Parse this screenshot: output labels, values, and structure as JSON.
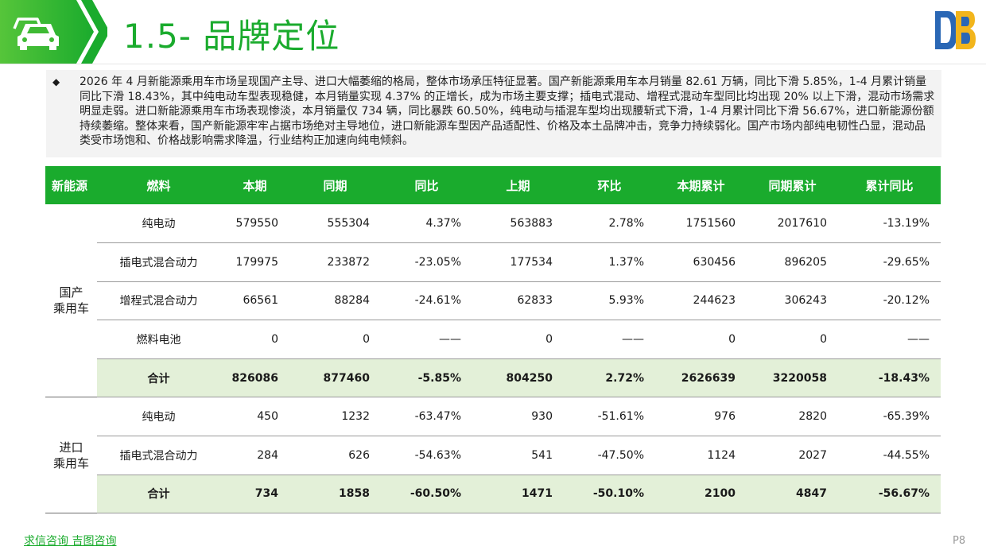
{
  "header": {
    "title": "1.5- 品牌定位",
    "icon": "car-icon",
    "accent_color": "#1aab2d"
  },
  "summary": {
    "bullet": "◆",
    "text": "2026 年 4 月新能源乘用车市场呈现国产主导、进口大幅萎缩的格局，整体市场承压特征显著。国产新能源乘用车本月销量 82.61 万辆，同比下滑 5.85%，1-4 月累计销量同比下滑 18.43%，其中纯电动车型表现稳健，本月销量实现 4.37% 的正增长，成为市场主要支撑；插电式混动、增程式混动车型同比均出现 20% 以上下滑，混动市场需求明显走弱。进口新能源乘用车市场表现惨淡，本月销量仅 734 辆，同比暴跌 60.50%，纯电动与插混车型均出现腰斩式下滑，1-4 月累计同比下滑 56.67%，进口新能源份额持续萎缩。整体来看，国产新能源牢牢占据市场绝对主导地位，进口新能源车型因产品适配性、价格及本土品牌冲击，竞争力持续弱化。国产市场内部纯电韧性凸显，混动品类受市场饱和、价格战影响需求降温，行业结构正加速向纯电倾斜。"
  },
  "table": {
    "headers": [
      "新能源",
      "燃料",
      "本期",
      "同期",
      "同比",
      "上期",
      "环比",
      "本期累计",
      "同期累计",
      "累计同比"
    ],
    "groups": [
      {
        "name_line1": "国产",
        "name_line2": "乘用车",
        "rows": [
          [
            "纯电动",
            "579550",
            "555304",
            "4.37%",
            "563883",
            "2.78%",
            "1751560",
            "2017610",
            "-13.19%"
          ],
          [
            "插电式混合动力",
            "179975",
            "233872",
            "-23.05%",
            "177534",
            "1.37%",
            "630456",
            "896205",
            "-29.65%"
          ],
          [
            "增程式混合动力",
            "66561",
            "88284",
            "-24.61%",
            "62833",
            "5.93%",
            "244623",
            "306243",
            "-20.12%"
          ],
          [
            "燃料电池",
            "0",
            "0",
            "——",
            "0",
            "——",
            "0",
            "0",
            "——"
          ]
        ],
        "total": [
          "合计",
          "826086",
          "877460",
          "-5.85%",
          "804250",
          "2.72%",
          "2626639",
          "3220058",
          "-18.43%"
        ]
      },
      {
        "name_line1": "进口",
        "name_line2": "乘用车",
        "rows": [
          [
            "纯电动",
            "450",
            "1232",
            "-63.47%",
            "930",
            "-51.61%",
            "976",
            "2820",
            "-65.39%"
          ],
          [
            "插电式混合动力",
            "284",
            "626",
            "-54.63%",
            "541",
            "-47.50%",
            "1124",
            "2027",
            "-44.55%"
          ]
        ],
        "total": [
          "合计",
          "734",
          "1858",
          "-60.50%",
          "1471",
          "-50.10%",
          "2100",
          "4847",
          "-56.67%"
        ]
      }
    ]
  },
  "footer": {
    "brand": "求信咨询  吉图咨询",
    "page": "P8"
  }
}
